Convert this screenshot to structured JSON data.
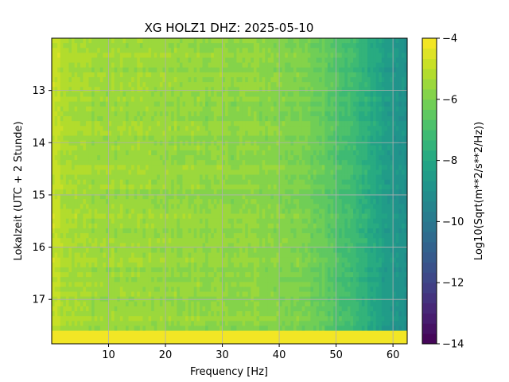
{
  "chart_data": {
    "type": "heatmap",
    "title": "XG HOLZ1  DHZ: 2025-05-10",
    "xlabel": "Frequency [Hz]",
    "ylabel": "Lokalzeit (UTC + 2 Stunde)",
    "xlim": [
      0,
      62.5
    ],
    "ylim": [
      17.85,
      12.0
    ],
    "x_ticks": [
      10,
      20,
      30,
      40,
      50,
      60
    ],
    "y_ticks": [
      13,
      14,
      15,
      16,
      17
    ],
    "y_inverted": true,
    "grid": true,
    "colormap": "viridis",
    "colorbar": {
      "label": "Log10(Sqrt(m**2/s**2/Hz))",
      "range": [
        -14,
        -4
      ],
      "ticks": [
        -4,
        -6,
        -8,
        -10,
        -12,
        -14
      ],
      "levels": 30
    },
    "profile": {
      "description_values": "approximate log10 PSD level vs frequency (Hz), nearly constant over time",
      "freq": [
        0,
        1,
        2,
        5,
        10,
        15,
        20,
        25,
        30,
        35,
        40,
        42,
        45,
        48,
        50,
        52,
        54,
        56,
        58,
        60,
        62.5
      ],
      "level": [
        -4.8,
        -4.9,
        -5.2,
        -5.4,
        -5.5,
        -5.5,
        -5.6,
        -5.6,
        -5.7,
        -5.7,
        -5.8,
        -5.9,
        -6.1,
        -6.4,
        -6.7,
        -7.0,
        -7.4,
        -7.8,
        -8.3,
        -8.7,
        -9.0
      ]
    },
    "no_data_band": {
      "y_start": 17.6,
      "y_end": 17.85,
      "level": -4.0
    }
  }
}
